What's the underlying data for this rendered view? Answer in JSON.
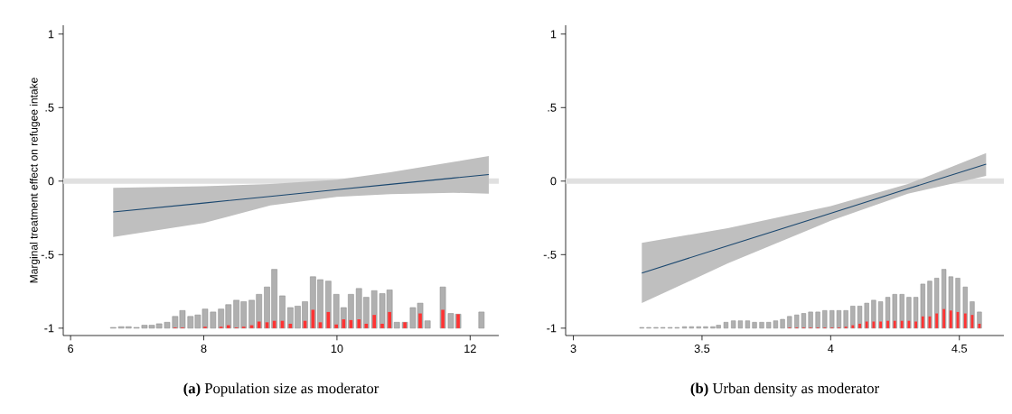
{
  "chart_data": [
    {
      "type": "line",
      "title": "**(a)** Population size as moderator",
      "ylabel": "Marginal treatment effect on refugee intake",
      "xlim": [
        5.89,
        12.43
      ],
      "ylim": [
        -1.05,
        1.06
      ],
      "xticks": [
        6,
        8,
        10,
        12
      ],
      "yticks": [
        {
          "value": -1,
          "label": "-1"
        },
        {
          "value": -0.5,
          "label": "-.5"
        },
        0,
        {
          "value": 0.5,
          "label": ".5"
        },
        1
      ],
      "ref_lines": [
        {
          "axis": "y",
          "value": 0,
          "color": "#e0e0e0"
        }
      ],
      "series": [
        {
          "type": "line",
          "color": "#1a476f",
          "x": [
            6.64,
            8.0,
            9.0,
            10.0,
            10.8,
            11.75,
            12.28
          ],
          "values": [
            -0.21,
            -0.149,
            -0.104,
            -0.058,
            -0.022,
            0.021,
            0.045
          ],
          "lower": [
            -0.38,
            -0.285,
            -0.165,
            -0.107,
            -0.088,
            -0.079,
            -0.085
          ],
          "upper": [
            -0.045,
            -0.035,
            -0.02,
            0.01,
            0.06,
            0.13,
            0.17
          ]
        },
        {
          "type": "bar",
          "color": "#b0b0b0",
          "x": [
            6.64,
            6.76,
            6.87,
            6.99,
            7.11,
            7.22,
            7.33,
            7.45,
            7.57,
            7.68,
            7.8,
            7.91,
            8.02,
            8.14,
            8.26,
            8.37,
            8.49,
            8.6,
            8.72,
            8.83,
            8.95,
            9.06,
            9.18,
            9.3,
            9.41,
            9.52,
            9.64,
            9.75,
            9.87,
            9.99,
            10.1,
            10.21,
            10.33,
            10.44,
            10.56,
            10.68,
            10.79,
            10.9,
            11.02,
            11.14,
            11.25,
            11.36,
            11.59,
            11.71,
            11.82,
            12.17
          ],
          "values": [
            0.005,
            0.01,
            0.01,
            0.005,
            0.02,
            0.02,
            0.03,
            0.04,
            0.08,
            0.12,
            0.08,
            0.09,
            0.13,
            0.11,
            0.13,
            0.16,
            0.19,
            0.18,
            0.19,
            0.23,
            0.28,
            0.4,
            0.22,
            0.14,
            0.15,
            0.18,
            0.35,
            0.33,
            0.32,
            0.23,
            0.14,
            0.23,
            0.27,
            0.21,
            0.255,
            0.235,
            0.26,
            0.04,
            0.04,
            0.14,
            0.17,
            0.05,
            0.28,
            0.1,
            0.095,
            0.11
          ],
          "base": [
            -1,
            -1,
            -1,
            -1,
            -1,
            -1,
            -1,
            -1,
            -1,
            -1,
            -1,
            -1,
            -1,
            -1,
            -1,
            -1,
            -1,
            -1,
            -1,
            -1,
            -1,
            -1,
            -1,
            -1,
            -1,
            -1,
            -1,
            -1,
            -1,
            -1,
            -1,
            -1,
            -1,
            -1,
            -1,
            -1,
            -1,
            -1,
            -1,
            -1,
            -1,
            -1,
            -1,
            -1,
            -1,
            -1
          ]
        },
        {
          "type": "bar",
          "color": "#ff3333",
          "x": [
            7.57,
            7.68,
            8.02,
            8.26,
            8.37,
            8.49,
            8.6,
            8.72,
            8.83,
            8.95,
            9.06,
            9.18,
            9.3,
            9.52,
            9.64,
            9.75,
            9.87,
            9.99,
            10.1,
            10.21,
            10.33,
            10.44,
            10.56,
            10.68,
            10.79,
            11.02,
            11.25,
            11.59,
            11.82
          ],
          "values": [
            0.005,
            0.005,
            0.01,
            0.01,
            0.02,
            0.005,
            0.01,
            0.02,
            0.045,
            0.04,
            0.05,
            0.05,
            0.03,
            0.05,
            0.125,
            0.04,
            0.11,
            0.025,
            0.06,
            0.055,
            0.06,
            0.03,
            0.09,
            0.03,
            0.11,
            0.04,
            0.1,
            0.125,
            0.095
          ],
          "base": [
            -1,
            -1,
            -1,
            -1,
            -1,
            -1,
            -1,
            -1,
            -1,
            -1,
            -1,
            -1,
            -1,
            -1,
            -1,
            -1,
            -1,
            -1,
            -1,
            -1,
            -1,
            -1,
            -1,
            -1,
            -1,
            -1,
            -1,
            -1,
            -1
          ]
        }
      ]
    },
    {
      "type": "line",
      "title": "**(b)** Urban density as moderator",
      "xlim": [
        2.97,
        4.673
      ],
      "ylim": [
        -1.05,
        1.06
      ],
      "xticks": [
        3,
        3.5,
        4,
        4.5
      ],
      "yticks": [
        {
          "value": -1,
          "label": "-1"
        },
        {
          "value": -0.5,
          "label": "-.5"
        },
        0,
        {
          "value": 0.5,
          "label": ".5"
        },
        1
      ],
      "ref_lines": [
        {
          "axis": "y",
          "value": 0,
          "color": "#e0e0e0"
        }
      ],
      "series": [
        {
          "type": "line",
          "color": "#1a476f",
          "x": [
            3.266,
            3.6,
            4.0,
            4.3,
            4.604
          ],
          "values": [
            -0.625,
            -0.44,
            -0.219,
            -0.052,
            0.116
          ],
          "lower": [
            -0.83,
            -0.56,
            -0.27,
            -0.085,
            0.035
          ],
          "upper": [
            -0.42,
            -0.32,
            -0.17,
            -0.02,
            0.19
          ]
        },
        {
          "type": "bar",
          "color": "#b0b0b0",
          "x": [
            3.266,
            3.293,
            3.321,
            3.348,
            3.376,
            3.403,
            3.432,
            3.459,
            3.487,
            3.514,
            3.542,
            3.564,
            3.593,
            3.622,
            3.649,
            3.677,
            3.704,
            3.732,
            3.759,
            3.786,
            3.813,
            3.84,
            3.868,
            3.895,
            3.922,
            3.95,
            3.977,
            4.005,
            4.032,
            4.059,
            4.086,
            4.113,
            4.14,
            4.167,
            4.194,
            4.222,
            4.249,
            4.277,
            4.304,
            4.331,
            4.358,
            4.385,
            4.412,
            4.44,
            4.467,
            4.494,
            4.523,
            4.55,
            4.578
          ],
          "values": [
            0.005,
            0.005,
            0.005,
            0.005,
            0.005,
            0.005,
            0.01,
            0.01,
            0.01,
            0.01,
            0.01,
            0.02,
            0.04,
            0.05,
            0.05,
            0.05,
            0.04,
            0.04,
            0.04,
            0.05,
            0.06,
            0.08,
            0.09,
            0.1,
            0.11,
            0.11,
            0.12,
            0.12,
            0.12,
            0.12,
            0.15,
            0.15,
            0.17,
            0.19,
            0.18,
            0.21,
            0.23,
            0.23,
            0.21,
            0.21,
            0.3,
            0.32,
            0.34,
            0.4,
            0.35,
            0.34,
            0.28,
            0.18,
            0.11
          ],
          "base": [
            -1,
            -1,
            -1,
            -1,
            -1,
            -1,
            -1,
            -1,
            -1,
            -1,
            -1,
            -1,
            -1,
            -1,
            -1,
            -1,
            -1,
            -1,
            -1,
            -1,
            -1,
            -1,
            -1,
            -1,
            -1,
            -1,
            -1,
            -1,
            -1,
            -1,
            -1,
            -1,
            -1,
            -1,
            -1,
            -1,
            -1,
            -1,
            -1,
            -1,
            -1,
            -1,
            -1,
            -1,
            -1,
            -1,
            -1,
            -1,
            -1
          ]
        },
        {
          "type": "bar",
          "color": "#ff3333",
          "x": [
            3.84,
            3.868,
            3.895,
            3.922,
            3.95,
            3.977,
            4.005,
            4.032,
            4.059,
            4.086,
            4.113,
            4.14,
            4.167,
            4.194,
            4.222,
            4.249,
            4.277,
            4.304,
            4.331,
            4.358,
            4.385,
            4.412,
            4.44,
            4.467,
            4.494,
            4.523,
            4.55,
            4.578
          ],
          "values": [
            0.005,
            0.005,
            0.005,
            0.005,
            0.005,
            0.005,
            0.005,
            0.005,
            0.01,
            0.02,
            0.03,
            0.045,
            0.045,
            0.045,
            0.05,
            0.05,
            0.05,
            0.05,
            0.045,
            0.08,
            0.08,
            0.1,
            0.13,
            0.12,
            0.11,
            0.1,
            0.09,
            0.03
          ],
          "base": [
            -1,
            -1,
            -1,
            -1,
            -1,
            -1,
            -1,
            -1,
            -1,
            -1,
            -1,
            -1,
            -1,
            -1,
            -1,
            -1,
            -1,
            -1,
            -1,
            -1,
            -1,
            -1,
            -1,
            -1,
            -1,
            -1,
            -1,
            -1
          ]
        }
      ]
    }
  ]
}
